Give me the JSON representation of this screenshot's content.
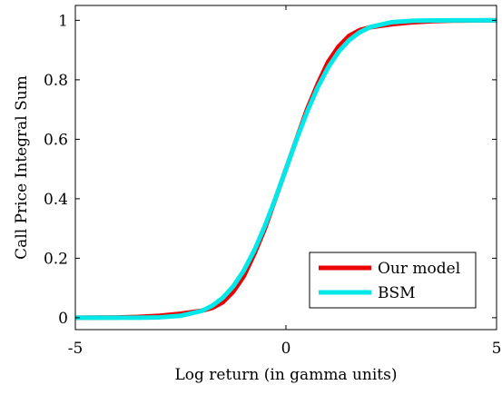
{
  "chart_data": {
    "type": "line",
    "title": "",
    "xlabel": "Log return (in gamma units)",
    "ylabel": "Call Price Integral Sum",
    "xlim": [
      -5,
      5
    ],
    "ylim": [
      -0.04,
      1.05
    ],
    "x_ticks": [
      -5,
      0,
      5
    ],
    "x_tick_labels": [
      "-5",
      "0",
      "5"
    ],
    "y_ticks": [
      0,
      0.2,
      0.4,
      0.6,
      0.8,
      1
    ],
    "y_tick_labels": [
      "0",
      "0.2",
      "0.4",
      "0.6",
      "0.8",
      "1"
    ],
    "grid": false,
    "legend_position": "bottom-right",
    "x": [
      -5,
      -4.5,
      -4,
      -3.5,
      -3,
      -2.5,
      -2,
      -1.75,
      -1.5,
      -1.25,
      -1,
      -0.75,
      -0.5,
      -0.25,
      0,
      0.25,
      0.5,
      0.75,
      1,
      1.25,
      1.5,
      1.75,
      2,
      2.5,
      3,
      3.5,
      4,
      4.5,
      5
    ],
    "series": [
      {
        "name": "Our model",
        "color": "#ee0000",
        "values": [
          0.0001,
          0.0003,
          0.0009,
          0.0027,
          0.0067,
          0.0135,
          0.0235,
          0.033,
          0.052,
          0.088,
          0.14,
          0.215,
          0.3,
          0.4,
          0.5,
          0.6,
          0.7,
          0.785,
          0.86,
          0.912,
          0.948,
          0.967,
          0.9765,
          0.9865,
          0.9933,
          0.9973,
          0.9991,
          0.9997,
          0.9999
        ]
      },
      {
        "name": "BSM",
        "color": "#00e8e8",
        "values": [
          0.0,
          0.0,
          0.0,
          0.0002,
          0.0014,
          0.0066,
          0.0228,
          0.04,
          0.0668,
          0.1056,
          0.1587,
          0.2266,
          0.3085,
          0.4013,
          0.5,
          0.5987,
          0.6915,
          0.7734,
          0.8413,
          0.8944,
          0.9332,
          0.96,
          0.9772,
          0.9934,
          0.9986,
          0.9998,
          1.0,
          1.0,
          1.0
        ]
      }
    ]
  }
}
